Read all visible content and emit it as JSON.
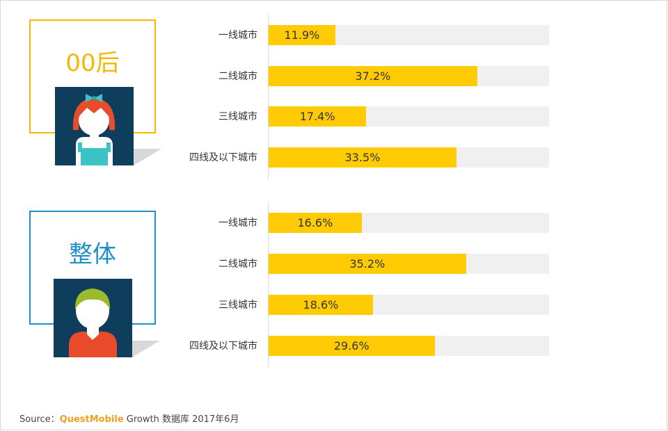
{
  "chart_data": [
    {
      "type": "bar",
      "group": "00后",
      "categories": [
        "一线城市",
        "二线城市",
        "三线城市",
        "四线及以下城市"
      ],
      "values": [
        11.9,
        37.2,
        17.4,
        33.5
      ],
      "value_labels": [
        "11.9%",
        "37.2%",
        "17.4%",
        "33.5%"
      ],
      "xlim": [
        0,
        50
      ],
      "unit": "%"
    },
    {
      "type": "bar",
      "group": "整体",
      "categories": [
        "一线城市",
        "二线城市",
        "三线城市",
        "四线及以下城市"
      ],
      "values": [
        16.6,
        35.2,
        18.6,
        29.6
      ],
      "value_labels": [
        "16.6%",
        "35.2%",
        "18.6%",
        "29.6%"
      ],
      "xlim": [
        0,
        50
      ],
      "unit": "%"
    }
  ],
  "groups": [
    {
      "label": "00后",
      "color": "#f5b800",
      "avatar": "girl-red-hair-icon"
    },
    {
      "label": "整体",
      "color": "#1f8fc8",
      "avatar": "person-green-hair-icon"
    }
  ],
  "colors": {
    "bar": "#ffcb05",
    "track": "#f0f0f0",
    "avatar_bg": "#0e3e5c"
  },
  "source": {
    "prefix": "Source：",
    "brand": "QuestMobile",
    "suffix": " Growth 数据库 2017年6月"
  }
}
